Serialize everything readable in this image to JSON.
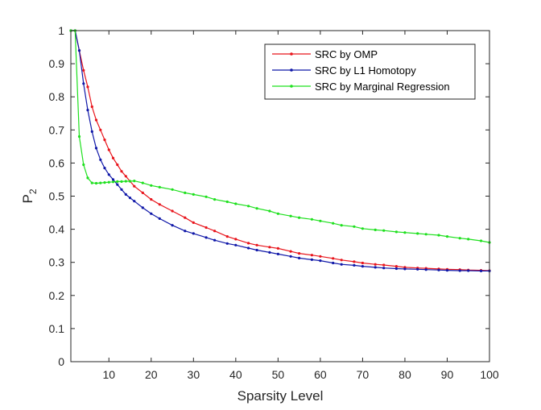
{
  "chart_data": {
    "type": "line",
    "title": "",
    "xlabel": "Sparsity Level",
    "ylabel": "P",
    "ylabel_subscript": "2",
    "xlim": [
      1,
      100
    ],
    "ylim": [
      0,
      1
    ],
    "xticks": [
      10,
      20,
      30,
      40,
      50,
      60,
      70,
      80,
      90,
      100
    ],
    "yticks": [
      0,
      0.1,
      0.2,
      0.3,
      0.4,
      0.5,
      0.6,
      0.7,
      0.8,
      0.9,
      1
    ],
    "ytick_labels": [
      "0",
      "0.1",
      "0.2",
      "0.3",
      "0.4",
      "0.5",
      "0.6",
      "0.7",
      "0.8",
      "0.9",
      "1"
    ],
    "grid": false,
    "legend_position": "top-right",
    "marker": "dot",
    "x": [
      1,
      2,
      3,
      4,
      5,
      6,
      7,
      8,
      9,
      10,
      11,
      12,
      13,
      14,
      15,
      16,
      18,
      20,
      22,
      25,
      28,
      30,
      33,
      35,
      38,
      40,
      43,
      45,
      48,
      50,
      53,
      55,
      58,
      60,
      63,
      65,
      68,
      70,
      73,
      75,
      78,
      80,
      83,
      85,
      88,
      90,
      93,
      95,
      98,
      100
    ],
    "series": [
      {
        "name": "SRC by OMP",
        "color": "#e8141b",
        "values": [
          1.0,
          1.0,
          0.94,
          0.88,
          0.83,
          0.77,
          0.73,
          0.7,
          0.67,
          0.64,
          0.615,
          0.595,
          0.575,
          0.56,
          0.545,
          0.53,
          0.51,
          0.49,
          0.475,
          0.455,
          0.435,
          0.42,
          0.405,
          0.395,
          0.378,
          0.37,
          0.358,
          0.352,
          0.346,
          0.342,
          0.333,
          0.327,
          0.322,
          0.318,
          0.312,
          0.307,
          0.302,
          0.298,
          0.294,
          0.292,
          0.288,
          0.285,
          0.283,
          0.282,
          0.28,
          0.279,
          0.278,
          0.277,
          0.276,
          0.275
        ]
      },
      {
        "name": "SRC by L1 Homotopy",
        "color": "#0f17a8",
        "values": [
          1.0,
          1.0,
          0.94,
          0.84,
          0.76,
          0.695,
          0.645,
          0.61,
          0.585,
          0.565,
          0.55,
          0.535,
          0.52,
          0.505,
          0.495,
          0.485,
          0.465,
          0.447,
          0.432,
          0.412,
          0.395,
          0.387,
          0.375,
          0.367,
          0.357,
          0.352,
          0.343,
          0.337,
          0.33,
          0.325,
          0.318,
          0.313,
          0.308,
          0.305,
          0.298,
          0.294,
          0.291,
          0.288,
          0.285,
          0.283,
          0.281,
          0.28,
          0.279,
          0.278,
          0.277,
          0.276,
          0.275,
          0.275,
          0.274,
          0.274
        ]
      },
      {
        "name": "SRC by Marginal Regression",
        "color": "#1ee01e",
        "values": [
          1.0,
          1.0,
          0.68,
          0.595,
          0.555,
          0.54,
          0.539,
          0.54,
          0.541,
          0.542,
          0.543,
          0.544,
          0.544,
          0.545,
          0.545,
          0.546,
          0.54,
          0.532,
          0.527,
          0.52,
          0.51,
          0.505,
          0.498,
          0.49,
          0.483,
          0.477,
          0.47,
          0.463,
          0.455,
          0.447,
          0.44,
          0.435,
          0.43,
          0.425,
          0.418,
          0.412,
          0.408,
          0.402,
          0.398,
          0.396,
          0.392,
          0.39,
          0.387,
          0.385,
          0.382,
          0.378,
          0.373,
          0.37,
          0.365,
          0.36
        ]
      }
    ]
  }
}
